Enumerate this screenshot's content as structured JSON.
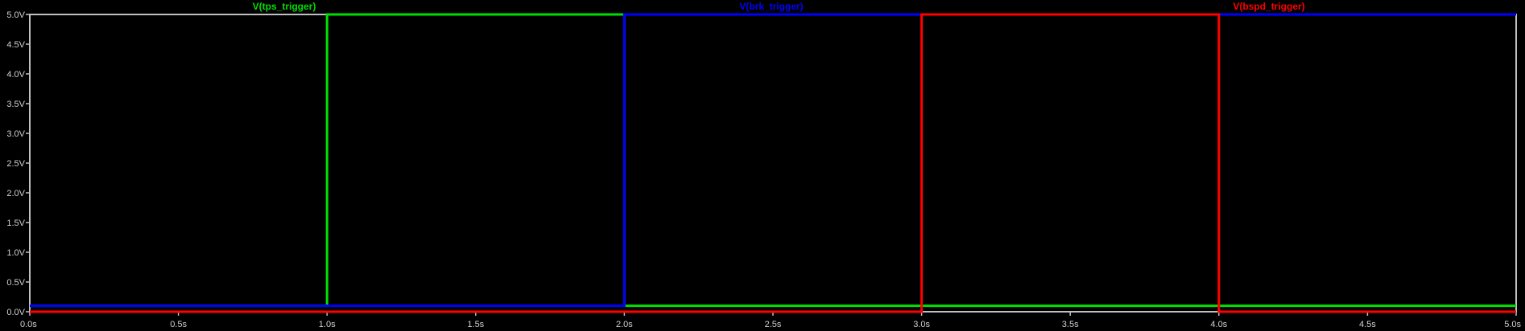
{
  "chart_data": {
    "type": "line",
    "title": "",
    "xlabel": "",
    "ylabel": "",
    "xlim": [
      0,
      5
    ],
    "ylim": [
      0,
      5
    ],
    "grid": false,
    "legend_position": "top",
    "background_color": "#000000",
    "axis_color": "#c0c0c0",
    "x_ticks": [
      0,
      0.5,
      1,
      1.5,
      2,
      2.5,
      3,
      3.5,
      4,
      4.5,
      5
    ],
    "x_tick_labels": [
      "0.0s",
      "0.5s",
      "1.0s",
      "1.5s",
      "2.0s",
      "2.5s",
      "3.0s",
      "3.5s",
      "4.0s",
      "4.5s",
      "5.0s"
    ],
    "y_ticks": [
      0,
      0.5,
      1,
      1.5,
      2,
      2.5,
      3,
      3.5,
      4,
      4.5,
      5
    ],
    "y_tick_labels": [
      "0.0V",
      "0.5V",
      "1.0V",
      "1.5V",
      "2.0V",
      "2.5V",
      "3.0V",
      "3.5V",
      "4.0V",
      "4.5V",
      "5.0V"
    ],
    "series": [
      {
        "name": "V(tps_trigger)",
        "color": "#00e000",
        "points": [
          [
            0,
            0.1
          ],
          [
            1,
            0.1
          ],
          [
            1,
            5
          ],
          [
            2,
            5
          ],
          [
            2,
            0.1
          ],
          [
            4,
            0.1
          ],
          [
            4,
            0.1
          ],
          [
            5,
            0.1
          ]
        ]
      },
      {
        "name": "V(brk_trigger)",
        "color": "#0000ff",
        "points": [
          [
            0,
            0.1
          ],
          [
            2,
            0.1
          ],
          [
            2,
            5
          ],
          [
            5,
            5
          ]
        ]
      },
      {
        "name": "V(bspd_trigger)",
        "color": "#ff0000",
        "points": [
          [
            0,
            0
          ],
          [
            3,
            0
          ],
          [
            3,
            5
          ],
          [
            4,
            5
          ],
          [
            4,
            0
          ],
          [
            5,
            0
          ]
        ]
      }
    ]
  }
}
